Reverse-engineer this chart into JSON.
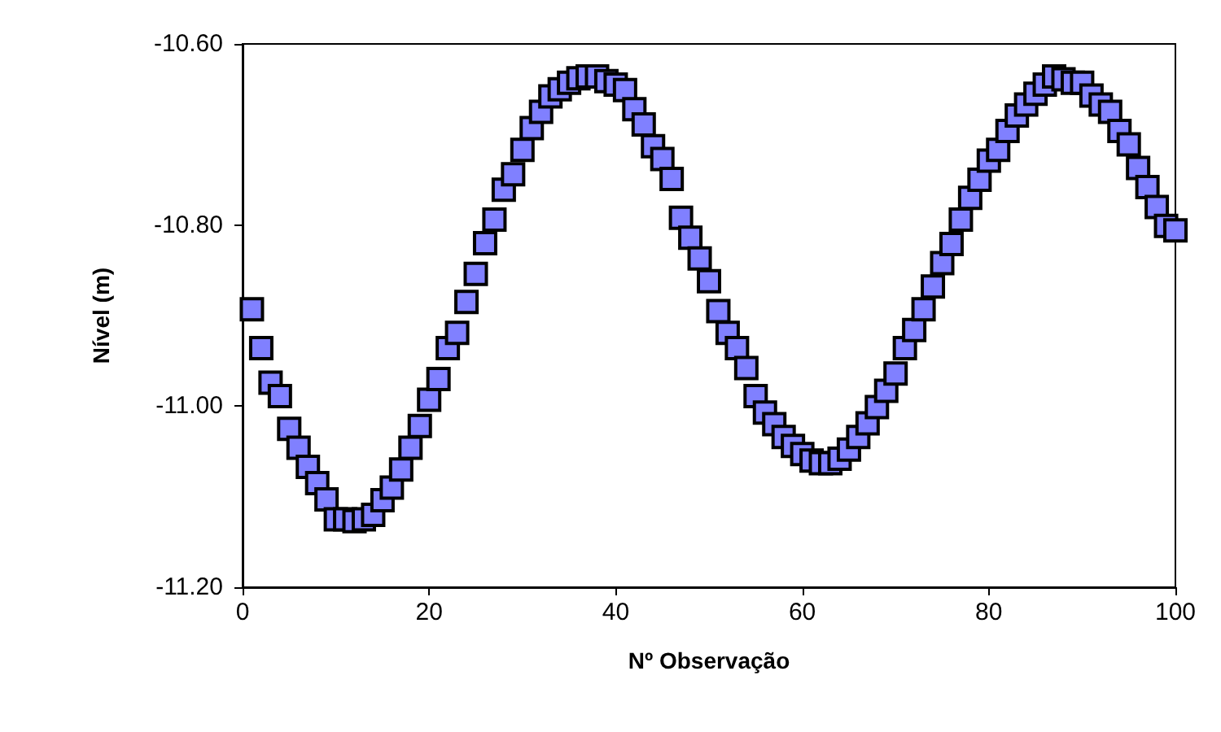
{
  "chart_data": {
    "type": "scatter",
    "xlabel": "Nº Observação",
    "ylabel": "Nível (m)",
    "x": [
      1,
      2,
      3,
      4,
      5,
      6,
      7,
      8,
      9,
      10,
      11,
      12,
      13,
      14,
      15,
      16,
      17,
      18,
      19,
      20,
      21,
      22,
      23,
      24,
      25,
      26,
      27,
      28,
      29,
      30,
      31,
      32,
      33,
      34,
      35,
      36,
      37,
      38,
      39,
      40,
      41,
      42,
      43,
      44,
      45,
      46,
      47,
      48,
      49,
      50,
      51,
      52,
      53,
      54,
      55,
      56,
      57,
      58,
      59,
      60,
      61,
      62,
      63,
      64,
      65,
      66,
      67,
      68,
      69,
      70,
      71,
      72,
      73,
      74,
      75,
      76,
      77,
      78,
      79,
      80,
      81,
      82,
      83,
      84,
      85,
      86,
      87,
      88,
      89,
      90,
      91,
      92,
      93,
      94,
      95,
      96,
      97,
      98,
      99,
      100
    ],
    "values": [
      -10.893,
      -10.936,
      -10.974,
      -10.989,
      -11.025,
      -11.046,
      -11.067,
      -11.085,
      -11.103,
      -11.125,
      -11.125,
      -11.127,
      -11.125,
      -11.12,
      -11.104,
      -11.09,
      -11.07,
      -11.046,
      -11.022,
      -10.993,
      -10.97,
      -10.936,
      -10.919,
      -10.885,
      -10.854,
      -10.82,
      -10.794,
      -10.761,
      -10.744,
      -10.717,
      -10.693,
      -10.675,
      -10.658,
      -10.65,
      -10.643,
      -10.638,
      -10.636,
      -10.636,
      -10.641,
      -10.645,
      -10.651,
      -10.672,
      -10.689,
      -10.713,
      -10.727,
      -10.749,
      -10.792,
      -10.814,
      -10.837,
      -10.862,
      -10.895,
      -10.919,
      -10.936,
      -10.958,
      -10.989,
      -11.007,
      -11.02,
      -11.034,
      -11.044,
      -11.053,
      -11.06,
      -11.063,
      -11.063,
      -11.058,
      -11.048,
      -11.034,
      -11.019,
      -11.001,
      -10.983,
      -10.964,
      -10.936,
      -10.916,
      -10.893,
      -10.868,
      -10.842,
      -10.821,
      -10.794,
      -10.77,
      -10.75,
      -10.729,
      -10.717,
      -10.696,
      -10.679,
      -10.667,
      -10.655,
      -10.645,
      -10.636,
      -10.639,
      -10.643,
      -10.643,
      -10.657,
      -10.667,
      -10.675,
      -10.696,
      -10.711,
      -10.737,
      -10.758,
      -10.78,
      -10.801,
      -10.806
    ],
    "color": "#8080ff",
    "marker": "square",
    "xlim": [
      0,
      100
    ],
    "xticks": [
      0,
      20,
      40,
      60,
      80,
      100
    ],
    "ylim": [
      -11.2,
      -10.6
    ],
    "yticks": [
      {
        "value": -11.2,
        "label": "-11.20"
      },
      {
        "value": -11.0,
        "label": "-11.00"
      },
      {
        "value": -10.8,
        "label": "-10.80"
      },
      {
        "value": -10.6,
        "label": "-10.60"
      }
    ]
  }
}
